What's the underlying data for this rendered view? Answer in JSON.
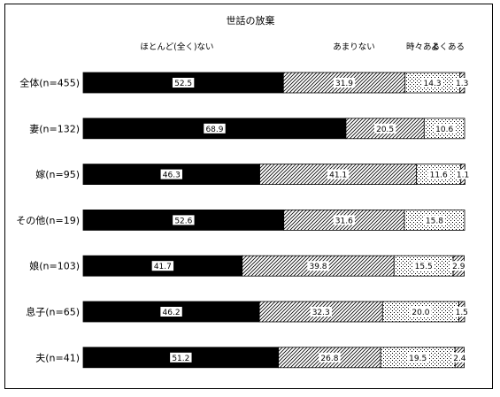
{
  "chart_data": {
    "type": "bar",
    "orientation": "horizontal",
    "stacked": true,
    "percent": true,
    "title": "世話の放棄",
    "xlim": [
      0,
      100
    ],
    "grid": false,
    "legend_placement": "top",
    "categories": [
      "全体(n=455)",
      "妻(n=132)",
      "嫁(n=95)",
      "その他(n=19)",
      "娘(n=103)",
      "息子(n=65)",
      "夫(n=41)"
    ],
    "series": [
      {
        "name": "ほとんど(全く)ない",
        "fill": "solid-black",
        "values": [
          52.5,
          68.9,
          46.3,
          52.6,
          41.7,
          46.2,
          51.2
        ],
        "labels": [
          "52.5",
          "68.9",
          "46.3",
          "52.6",
          "41.7",
          "46.2",
          "51.2"
        ]
      },
      {
        "name": "あまりない",
        "fill": "diagonal-hatch",
        "values": [
          31.9,
          20.5,
          41.1,
          31.6,
          39.8,
          32.3,
          26.8
        ],
        "labels": [
          "31.9",
          "20.5",
          "41.1",
          "31.6",
          "39.8",
          "32.3",
          "26.8"
        ]
      },
      {
        "name": "時々ある",
        "fill": "dotted",
        "values": [
          14.3,
          10.6,
          11.6,
          15.8,
          15.5,
          20.0,
          19.5
        ],
        "labels": [
          "14.3",
          "10.6",
          "11.6",
          "15.8",
          "15.5",
          "20.0",
          "19.5"
        ]
      },
      {
        "name": "よくある",
        "fill": "diagonal-hatch",
        "values": [
          1.3,
          0.0,
          1.1,
          0.0,
          2.9,
          1.5,
          2.4
        ],
        "labels": [
          "1.3",
          "",
          "1.1",
          "",
          "2.9",
          "1.5",
          "2.4"
        ]
      }
    ]
  }
}
